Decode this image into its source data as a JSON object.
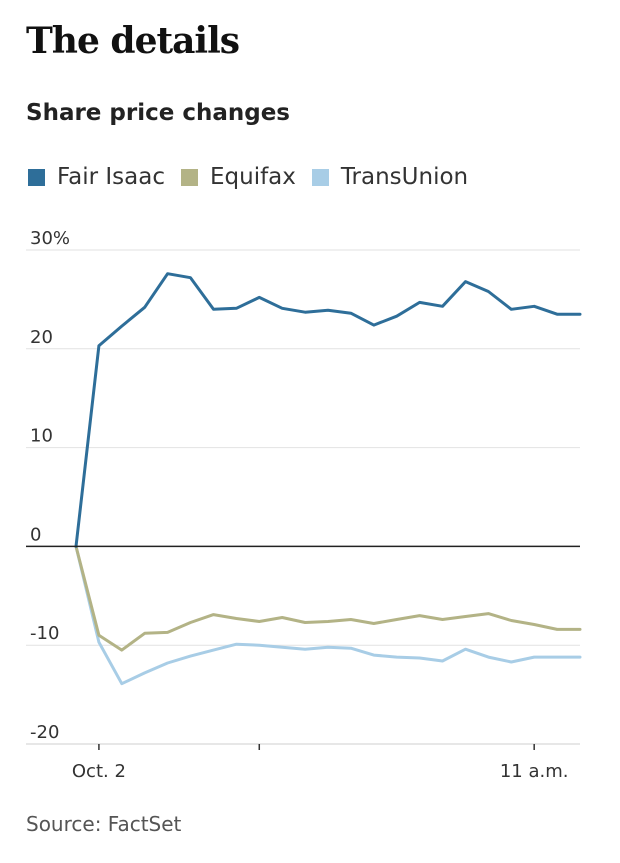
{
  "header": {
    "title": "The details",
    "subtitle": "Share price changes"
  },
  "legend": {
    "items": [
      {
        "label": "Fair Isaac",
        "color": "#2e6e99"
      },
      {
        "label": "Equifax",
        "color": "#b3b386"
      },
      {
        "label": "TransUnion",
        "color": "#a8cde6"
      }
    ]
  },
  "footer": {
    "source": "Source: FactSet"
  },
  "chart_data": {
    "type": "line",
    "title": "Share price changes",
    "x_tick_labels": [
      {
        "label": "Oct. 2",
        "x": 1
      },
      {
        "label": "",
        "x": 8
      },
      {
        "label": "11 a.m.",
        "x": 20
      }
    ],
    "y_ticks": [
      30,
      20,
      10,
      0,
      -10,
      -20
    ],
    "y_tick_labels": [
      "30%",
      "20",
      "10",
      "0",
      "-10",
      "-20"
    ],
    "ylim": [
      -20,
      30
    ],
    "xlim": [
      0,
      22
    ],
    "grid": true,
    "legend_position": "top-left",
    "series": [
      {
        "name": "Fair Isaac",
        "color": "#2e6e99",
        "x": [
          0,
          1,
          2,
          3,
          4,
          5,
          6,
          7,
          8,
          9,
          10,
          11,
          12,
          13,
          14,
          15,
          16,
          17,
          18,
          19,
          20,
          21,
          22
        ],
        "values": [
          0,
          20.3,
          22.3,
          24.2,
          27.6,
          27.2,
          24.0,
          24.1,
          25.2,
          24.1,
          23.7,
          23.9,
          23.6,
          22.4,
          23.3,
          24.7,
          24.3,
          26.8,
          25.8,
          24.0,
          24.3,
          23.5,
          23.5
        ]
      },
      {
        "name": "Equifax",
        "color": "#b3b386",
        "x": [
          0,
          1,
          2,
          3,
          4,
          5,
          6,
          7,
          8,
          9,
          10,
          11,
          12,
          13,
          14,
          15,
          16,
          17,
          18,
          19,
          20,
          21,
          22
        ],
        "values": [
          0,
          -9.0,
          -10.5,
          -8.8,
          -8.7,
          -7.7,
          -6.9,
          -7.3,
          -7.6,
          -7.2,
          -7.7,
          -7.6,
          -7.4,
          -7.8,
          -7.4,
          -7.0,
          -7.4,
          -7.1,
          -6.8,
          -7.5,
          -7.9,
          -8.4,
          -8.4
        ]
      },
      {
        "name": "TransUnion",
        "color": "#a8cde6",
        "x": [
          0,
          1,
          2,
          3,
          4,
          5,
          6,
          7,
          8,
          9,
          10,
          11,
          12,
          13,
          14,
          15,
          16,
          17,
          18,
          19,
          20,
          21,
          22
        ],
        "values": [
          0,
          -9.7,
          -13.9,
          -12.8,
          -11.8,
          -11.1,
          -10.5,
          -9.9,
          -10.0,
          -10.2,
          -10.4,
          -10.2,
          -10.3,
          -11.0,
          -11.2,
          -11.3,
          -11.6,
          -10.4,
          -11.2,
          -11.7,
          -11.2,
          -11.2,
          -11.2
        ]
      }
    ]
  }
}
